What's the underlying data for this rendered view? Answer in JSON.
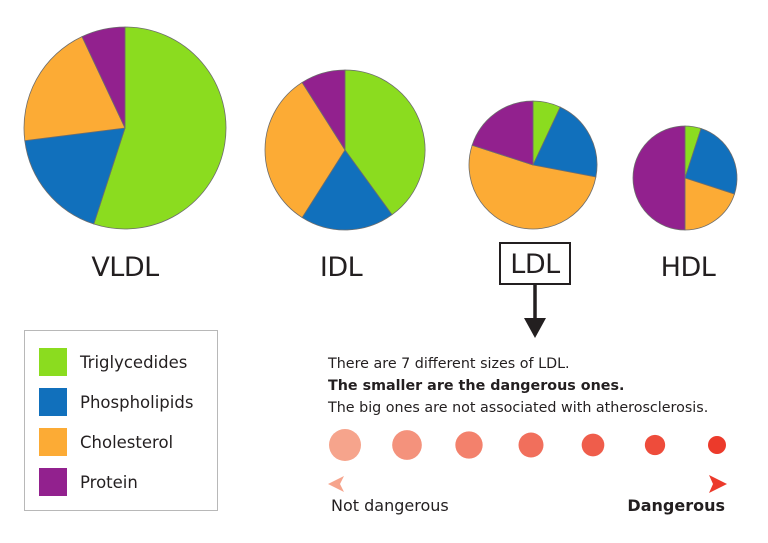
{
  "colors": {
    "triglycerides": "#8bdc1f",
    "phospholipids": "#1170bc",
    "cholesterol": "#fcab35",
    "protein": "#92218e"
  },
  "legend": [
    {
      "label": "Triglycedides",
      "key": "triglycerides"
    },
    {
      "label": "Phospholipids",
      "key": "phospholipids"
    },
    {
      "label": "Cholesterol",
      "key": "cholesterol"
    },
    {
      "label": "Protein",
      "key": "protein"
    }
  ],
  "chart_data": {
    "type": "pie",
    "slice_order": [
      "triglycerides",
      "phospholipids",
      "cholesterol",
      "protein"
    ],
    "pies": [
      {
        "name": "VLDL",
        "values": [
          55,
          18,
          20,
          7
        ]
      },
      {
        "name": "IDL",
        "values": [
          40,
          19,
          32,
          9
        ]
      },
      {
        "name": "LDL",
        "values": [
          7,
          21,
          52,
          20
        ],
        "highlighted": true
      },
      {
        "name": "HDL",
        "values": [
          5,
          25,
          20,
          50
        ]
      }
    ]
  },
  "ldl_info": {
    "line1": "There are 7 different sizes of LDL.",
    "line2": "The smaller are the dangerous ones.",
    "line3": "The big ones are not associated with atherosclerosis."
  },
  "scale": {
    "sizes_count": 7,
    "left_label": "Not dangerous",
    "right_label": "Dangerous",
    "color_start": "#f6a48c",
    "color_end": "#ec3a2b"
  }
}
